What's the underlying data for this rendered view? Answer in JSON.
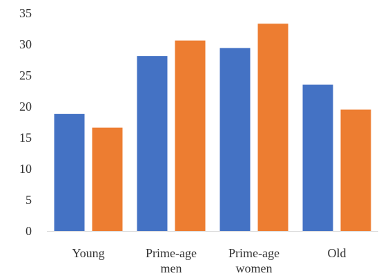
{
  "chart_data": {
    "type": "bar",
    "categories": [
      {
        "lines": [
          "Young"
        ]
      },
      {
        "lines": [
          "Prime-age",
          "men"
        ]
      },
      {
        "lines": [
          "Prime-age",
          "women"
        ]
      },
      {
        "lines": [
          "Old"
        ]
      }
    ],
    "series": [
      {
        "color": "#4472C4",
        "values": [
          18.8,
          28.1,
          29.4,
          23.5
        ]
      },
      {
        "color": "#ED7D31",
        "values": [
          16.6,
          30.6,
          33.3,
          19.5
        ]
      }
    ],
    "ylim": [
      0,
      35
    ],
    "yticks": [
      "0",
      "5",
      "10",
      "15",
      "20",
      "25",
      "30",
      "35"
    ],
    "grid": false,
    "legend": "none"
  }
}
